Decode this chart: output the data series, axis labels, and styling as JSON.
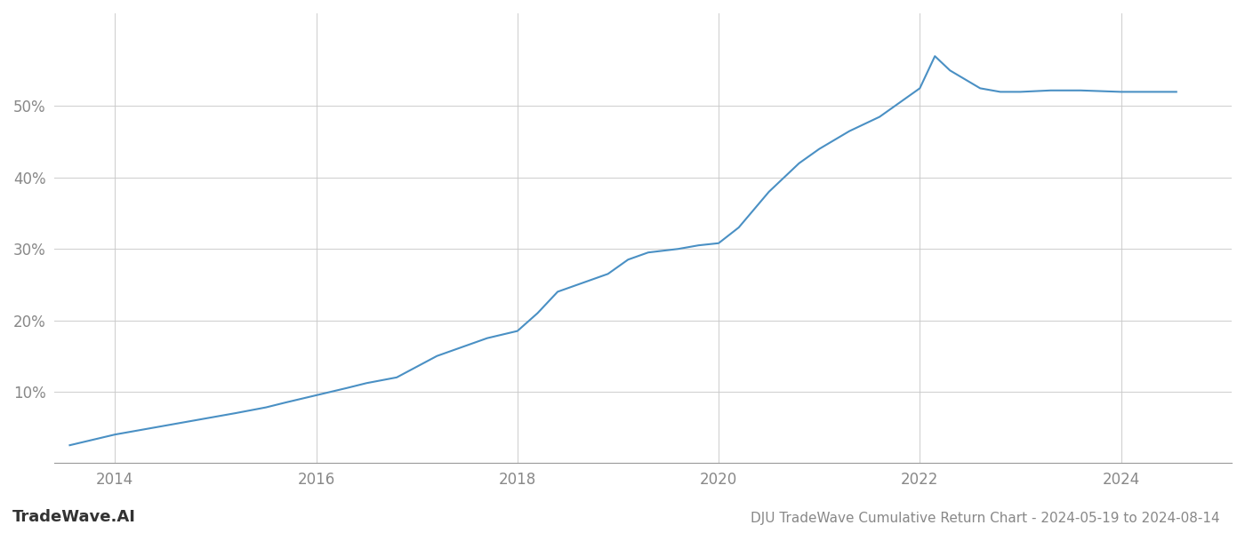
{
  "title": "DJU TradeWave Cumulative Return Chart - 2024-05-19 to 2024-08-14",
  "watermark": "TradeWave.AI",
  "line_color": "#4a90c4",
  "background_color": "#ffffff",
  "grid_color": "#cccccc",
  "x_values": [
    2013.55,
    2013.7,
    2013.85,
    2014.0,
    2014.2,
    2014.4,
    2014.6,
    2014.8,
    2015.0,
    2015.2,
    2015.5,
    2015.7,
    2016.0,
    2016.3,
    2016.5,
    2016.8,
    2017.0,
    2017.2,
    2017.5,
    2017.7,
    2018.0,
    2018.2,
    2018.4,
    2018.7,
    2018.9,
    2019.1,
    2019.3,
    2019.6,
    2019.8,
    2020.0,
    2020.2,
    2020.5,
    2020.8,
    2021.0,
    2021.3,
    2021.6,
    2021.8,
    2022.0,
    2022.15,
    2022.3,
    2022.6,
    2022.8,
    2023.0,
    2023.3,
    2023.6,
    2024.0,
    2024.3,
    2024.55
  ],
  "y_values": [
    2.5,
    3.0,
    3.5,
    4.0,
    4.5,
    5.0,
    5.5,
    6.0,
    6.5,
    7.0,
    7.8,
    8.5,
    9.5,
    10.5,
    11.2,
    12.0,
    13.5,
    15.0,
    16.5,
    17.5,
    18.5,
    21.0,
    24.0,
    25.5,
    26.5,
    28.5,
    29.5,
    30.0,
    30.5,
    30.8,
    33.0,
    38.0,
    42.0,
    44.0,
    46.5,
    48.5,
    50.5,
    52.5,
    57.0,
    55.0,
    52.5,
    52.0,
    52.0,
    52.2,
    52.2,
    52.0,
    52.0,
    52.0
  ],
  "xlim": [
    2013.4,
    2025.1
  ],
  "ylim": [
    0,
    63
  ],
  "yticks": [
    10,
    20,
    30,
    40,
    50
  ],
  "xticks": [
    2014,
    2016,
    2018,
    2020,
    2022,
    2024
  ],
  "line_width": 1.5,
  "title_fontsize": 11,
  "tick_fontsize": 12,
  "watermark_fontsize": 13
}
